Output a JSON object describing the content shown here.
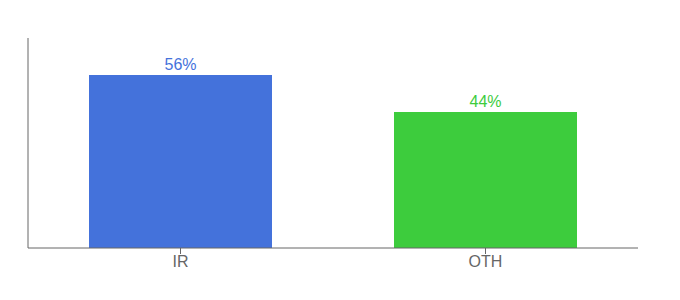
{
  "chart_data": {
    "type": "bar",
    "categories": [
      "IR",
      "OTH"
    ],
    "values": [
      56,
      44
    ],
    "value_labels": [
      "56%",
      "44%"
    ],
    "colors": [
      "#4472db",
      "#3dcc3d"
    ],
    "ylim": [
      0,
      68
    ],
    "data_labels": true,
    "tick_labels": "x",
    "grid": false
  }
}
